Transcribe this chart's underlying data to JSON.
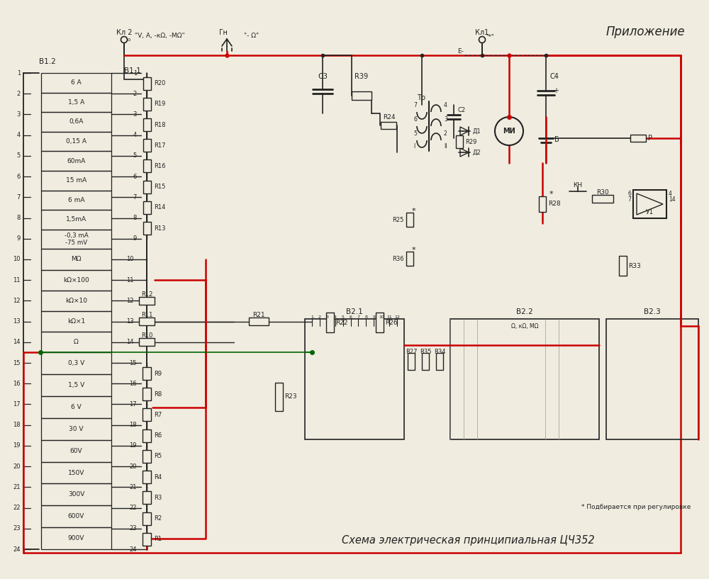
{
  "title": "Схема электрическая принципиальная ЦЧ352",
  "appendix_label": "Приложение",
  "background_color": "#f0ece0",
  "black": "#222222",
  "red": "#cc0000",
  "green": "#006600",
  "footnote": "* Подбирается при регулировке",
  "sw_top_labels": [
    "6 А",
    "1,5 А",
    "0,6А",
    "0,15 А",
    "60mA",
    "15 mA",
    "6 mA",
    "1,5mA",
    "-0,3 mA\n-75 mV"
  ],
  "sw_mid_labels": [
    "МΩ",
    "kΩ×100",
    "kΩ×10",
    "kΩ×1",
    "Ω"
  ],
  "sw_bot_labels": [
    "0,3 V",
    "1,5 V",
    "6 V",
    "30 V",
    "60V",
    "150V",
    "300V",
    "600V",
    "900V"
  ]
}
